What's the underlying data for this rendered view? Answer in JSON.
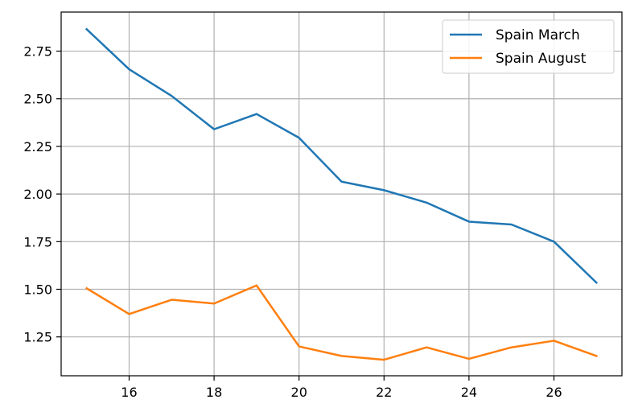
{
  "chart_data": {
    "type": "line",
    "title": "",
    "xlabel": "",
    "ylabel": "",
    "x": [
      15,
      16,
      17,
      18,
      19,
      20,
      21,
      22,
      23,
      24,
      25,
      26,
      27
    ],
    "xlim": [
      14.4,
      27.6
    ],
    "ylim": [
      1.046,
      2.955
    ],
    "x_ticks": [
      16,
      18,
      20,
      22,
      24,
      26
    ],
    "y_ticks": [
      1.25,
      1.5,
      1.75,
      2.0,
      2.25,
      2.5,
      2.75
    ],
    "x_tick_labels": [
      "16",
      "18",
      "20",
      "22",
      "24",
      "26"
    ],
    "y_tick_labels": [
      "1.25",
      "1.50",
      "1.75",
      "2.00",
      "2.25",
      "2.50",
      "2.75"
    ],
    "grid": true,
    "legend_position": "top-right",
    "series": [
      {
        "name": "Spain March",
        "color": "#1f77b4",
        "values": [
          2.865,
          2.655,
          2.515,
          2.34,
          2.42,
          2.295,
          2.065,
          2.02,
          1.955,
          1.855,
          1.84,
          1.75,
          1.535
        ]
      },
      {
        "name": "Spain August",
        "color": "#ff7f0e",
        "values": [
          1.505,
          1.37,
          1.445,
          1.425,
          1.52,
          1.2,
          1.15,
          1.13,
          1.195,
          1.135,
          1.195,
          1.23,
          1.15
        ]
      }
    ]
  }
}
